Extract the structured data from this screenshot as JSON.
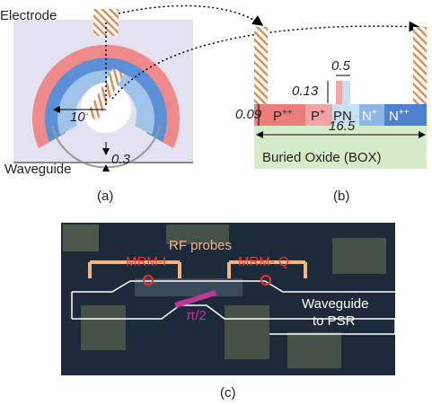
{
  "panel_a": {
    "electrode_label": "Electrode",
    "radius_label": "10",
    "gap_label": "0.3",
    "waveguide_label": "Waveguide",
    "caption": "(a)"
  },
  "panel_b": {
    "width_label": "0.5",
    "height_label": "0.13",
    "slab_label": "0.09",
    "regions": [
      {
        "base": "P",
        "sup": "++"
      },
      {
        "base": "P",
        "sup": "+"
      },
      {
        "base": "PN",
        "sup": ""
      },
      {
        "base": "N",
        "sup": "+"
      },
      {
        "base": "N",
        "sup": "++"
      }
    ],
    "box_width_label": "16.5",
    "box_label": "Buried Oxide (BOX)",
    "caption": "(b)"
  },
  "panel_c": {
    "probes_label": "RF probes",
    "mrm_i_label": "MRM-I",
    "mrm_q_label": "MRM- Q",
    "phase_label": "π/2",
    "waveguide_label_1": "Waveguide",
    "waveguide_label_2": "to PSR",
    "caption": "(c)"
  }
}
